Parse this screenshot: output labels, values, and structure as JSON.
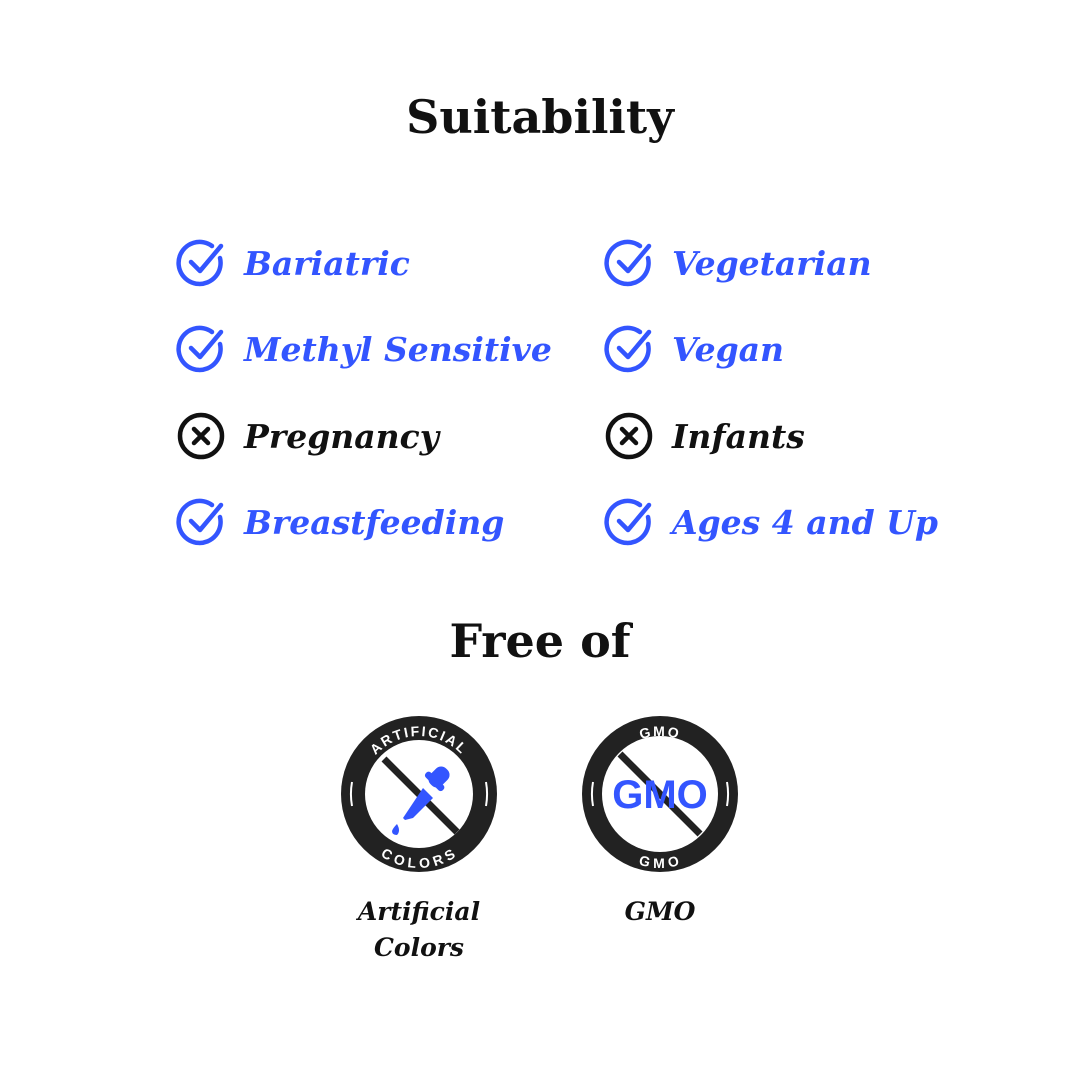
{
  "suitability": {
    "title": "Suitability",
    "items": [
      {
        "label": "Bariatric",
        "suitable": true
      },
      {
        "label": "Vegetarian",
        "suitable": true
      },
      {
        "label": "Methyl Sensitive",
        "suitable": true
      },
      {
        "label": "Vegan",
        "suitable": true
      },
      {
        "label": "Pregnancy",
        "suitable": false
      },
      {
        "label": "Infants",
        "suitable": false
      },
      {
        "label": "Breastfeeding",
        "suitable": true
      },
      {
        "label": "Ages 4 and Up",
        "suitable": true
      }
    ]
  },
  "free_of": {
    "title": "Free of",
    "badges": [
      {
        "label_line1": "Artificial",
        "label_line2": "Colors",
        "ring_top": "ARTIFICIAL",
        "ring_bottom": "COLORS",
        "icon": "dropper-icon"
      },
      {
        "label_line1": "GMO",
        "ring_top": "GMO",
        "ring_bottom": "GMO",
        "center_text": "GMO",
        "icon": "gmo-text"
      }
    ]
  },
  "colors": {
    "accent": "#3355ff",
    "dark": "#222222"
  }
}
